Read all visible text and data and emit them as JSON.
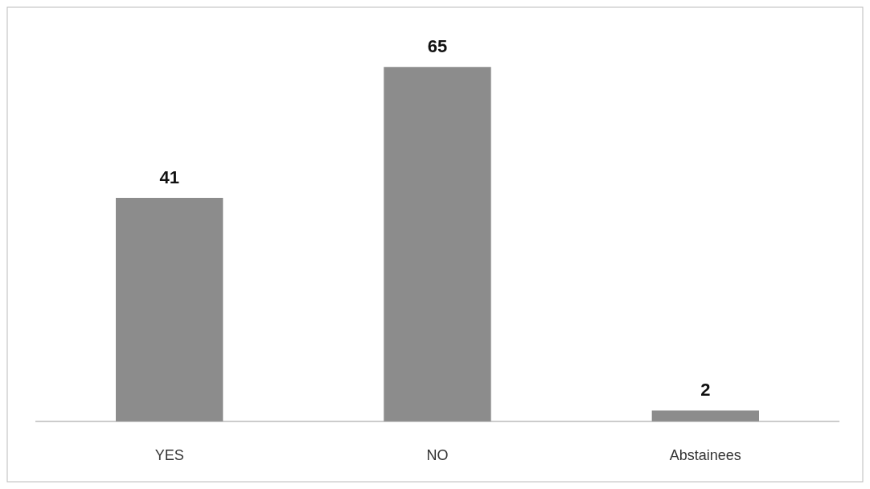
{
  "chart_data": {
    "type": "bar",
    "categories": [
      "YES",
      "NO",
      "Abstainees"
    ],
    "values": [
      41,
      65,
      2
    ],
    "color": "#8c8c8c",
    "data_labels": true
  }
}
